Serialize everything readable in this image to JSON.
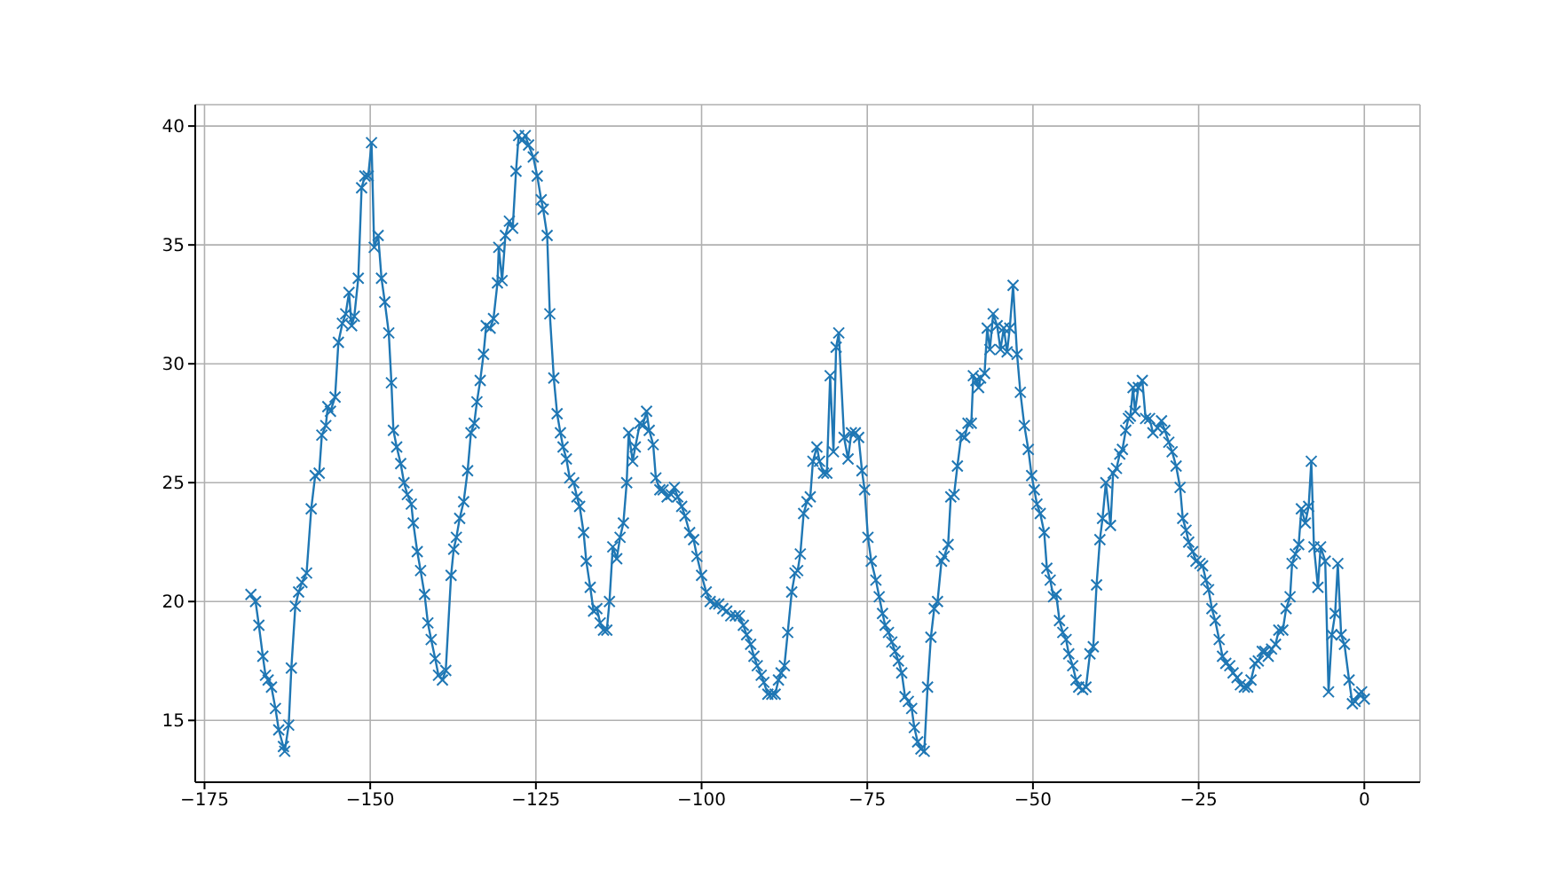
{
  "chart_data": {
    "type": "line",
    "x": [
      -168,
      -167.3,
      -166.8,
      -166.2,
      -165.8,
      -165.4,
      -164.9,
      -164.3,
      -163.8,
      -163.1,
      -162.9,
      -162.3,
      -161.9,
      -161.3,
      -160.8,
      -160.3,
      -159.6,
      -158.9,
      -158.3,
      -157.7,
      -157.3,
      -156.7,
      -156.4,
      -156.0,
      -155.3,
      -154.8,
      -154.2,
      -153.7,
      -153.2,
      -152.8,
      -152.4,
      -151.8,
      -151.3,
      -150.8,
      -150.3,
      -149.8,
      -149.4,
      -148.8,
      -148.3,
      -147.8,
      -147.2,
      -146.8,
      -146.5,
      -146.0,
      -145.4,
      -144.9,
      -144.4,
      -143.8,
      -143.5,
      -142.9,
      -142.4,
      -141.8,
      -141.3,
      -140.8,
      -140.2,
      -139.7,
      -139.1,
      -138.6,
      -137.8,
      -137.4,
      -137.0,
      -136.5,
      -135.9,
      -135.3,
      -134.8,
      -134.3,
      -133.9,
      -133.4,
      -132.9,
      -132.5,
      -131.9,
      -131.4,
      -130.8,
      -130.6,
      -130.1,
      -129.6,
      -129.0,
      -128.5,
      -128.0,
      -127.6,
      -127.1,
      -126.6,
      -126.1,
      -125.4,
      -124.8,
      -124.2,
      -123.9,
      -123.3,
      -122.9,
      -122.3,
      -121.8,
      -121.3,
      -120.9,
      -120.4,
      -119.9,
      -119.3,
      -118.8,
      -118.4,
      -117.8,
      -117.4,
      -116.8,
      -116.3,
      -115.8,
      -115.3,
      -114.8,
      -114.3,
      -113.9,
      -113.4,
      -112.8,
      -112.3,
      -111.8,
      -111.3,
      -111.0,
      -110.4,
      -110.0,
      -109.3,
      -108.9,
      -108.3,
      -107.9,
      -107.3,
      -106.9,
      -106.3,
      -105.8,
      -105.2,
      -104.6,
      -104.1,
      -103.6,
      -103.0,
      -102.5,
      -101.8,
      -101.2,
      -100.7,
      -100.0,
      -99.3,
      -98.7,
      -98.0,
      -97.4,
      -96.8,
      -96.2,
      -95.6,
      -94.9,
      -94.3,
      -93.7,
      -93.2,
      -92.6,
      -92.1,
      -91.6,
      -91.0,
      -90.6,
      -90.0,
      -89.4,
      -88.9,
      -88.4,
      -88.0,
      -87.5,
      -87.0,
      -86.4,
      -85.9,
      -85.5,
      -85.1,
      -84.6,
      -84.1,
      -83.6,
      -83.2,
      -82.6,
      -82.2,
      -81.6,
      -81.1,
      -80.6,
      -80.1,
      -79.7,
      -79.3,
      -78.5,
      -77.9,
      -77.4,
      -76.8,
      -76.3,
      -75.8,
      -75.4,
      -74.9,
      -74.4,
      -73.7,
      -73.2,
      -72.7,
      -72.3,
      -71.8,
      -71.3,
      -70.8,
      -70.3,
      -69.8,
      -69.3,
      -68.8,
      -68.3,
      -67.9,
      -67.4,
      -66.9,
      -66.4,
      -65.9,
      -65.4,
      -64.9,
      -64.4,
      -63.8,
      -63.4,
      -62.8,
      -62.4,
      -61.9,
      -61.4,
      -60.8,
      -60.3,
      -59.8,
      -59.3,
      -59.0,
      -58.6,
      -58.2,
      -57.9,
      -57.3,
      -56.9,
      -56.5,
      -56.0,
      -55.4,
      -54.9,
      -54.4,
      -53.9,
      -53.5,
      -53.0,
      -52.4,
      -51.9,
      -51.3,
      -50.7,
      -50.2,
      -49.8,
      -49.4,
      -48.9,
      -48.3,
      -47.9,
      -47.4,
      -46.9,
      -46.5,
      -46.0,
      -45.5,
      -45.0,
      -44.6,
      -44.0,
      -43.5,
      -43.1,
      -42.5,
      -42.0,
      -41.4,
      -40.9,
      -40.4,
      -39.9,
      -39.5,
      -39.0,
      -38.3,
      -37.9,
      -37.4,
      -36.9,
      -36.5,
      -36.0,
      -35.6,
      -35.3,
      -34.9,
      -34.6,
      -34.1,
      -33.5,
      -33.0,
      -32.4,
      -31.9,
      -31.2,
      -30.6,
      -30.1,
      -29.5,
      -29.0,
      -28.4,
      -27.8,
      -27.4,
      -26.9,
      -26.5,
      -25.9,
      -25.4,
      -24.8,
      -24.4,
      -23.9,
      -23.5,
      -23.0,
      -22.5,
      -21.9,
      -21.4,
      -20.9,
      -20.3,
      -19.8,
      -19.2,
      -18.7,
      -18.1,
      -17.6,
      -17.1,
      -16.5,
      -16.0,
      -15.4,
      -15.0,
      -14.5,
      -14.0,
      -13.4,
      -12.9,
      -12.3,
      -11.8,
      -11.2,
      -10.9,
      -10.4,
      -9.9,
      -9.5,
      -8.9,
      -8.4,
      -8.0,
      -7.6,
      -7.0,
      -6.6,
      -5.9,
      -5.4,
      -4.9,
      -4.4,
      -4.0,
      -3.5,
      -3.0,
      -2.3,
      -1.8,
      -1.4,
      -0.8,
      -0.4,
      0
    ],
    "values": [
      20.3,
      20.0,
      19.0,
      17.7,
      16.9,
      16.7,
      16.4,
      15.5,
      14.6,
      13.9,
      13.7,
      14.8,
      17.2,
      19.8,
      20.4,
      20.8,
      21.2,
      23.9,
      25.3,
      25.4,
      27.0,
      27.4,
      28.2,
      28.0,
      28.6,
      30.9,
      31.7,
      32.1,
      33.0,
      31.6,
      32.0,
      33.6,
      37.4,
      37.9,
      37.9,
      39.3,
      34.9,
      35.4,
      33.6,
      32.6,
      31.3,
      29.2,
      27.2,
      26.5,
      25.8,
      25.0,
      24.5,
      24.1,
      23.3,
      22.1,
      21.3,
      20.3,
      19.1,
      18.4,
      17.6,
      16.9,
      16.7,
      17.1,
      21.1,
      22.2,
      22.7,
      23.5,
      24.2,
      25.5,
      27.1,
      27.5,
      28.4,
      29.3,
      30.4,
      31.6,
      31.5,
      31.9,
      33.4,
      34.9,
      33.5,
      35.4,
      36.0,
      35.7,
      38.1,
      39.6,
      39.4,
      39.6,
      39.2,
      38.7,
      37.9,
      36.9,
      36.5,
      35.4,
      32.1,
      29.4,
      27.9,
      27.1,
      26.5,
      26.0,
      25.2,
      25.0,
      24.4,
      24.0,
      22.9,
      21.7,
      20.6,
      19.6,
      19.7,
      19.1,
      18.8,
      18.8,
      20.0,
      22.3,
      21.8,
      22.7,
      23.3,
      25.0,
      27.1,
      25.9,
      26.5,
      27.5,
      27.4,
      28.0,
      27.2,
      26.6,
      25.2,
      24.7,
      24.7,
      24.4,
      24.5,
      24.8,
      24.4,
      24.0,
      23.6,
      22.9,
      22.6,
      21.9,
      21.1,
      20.4,
      20.0,
      19.9,
      19.9,
      19.7,
      19.6,
      19.4,
      19.4,
      19.4,
      19.0,
      18.6,
      18.2,
      17.7,
      17.3,
      16.9,
      16.6,
      16.1,
      16.1,
      16.1,
      16.7,
      17.0,
      17.3,
      18.7,
      20.4,
      21.2,
      21.3,
      22.0,
      23.7,
      24.2,
      24.4,
      25.9,
      26.5,
      25.9,
      25.4,
      25.4,
      29.5,
      26.3,
      30.7,
      31.3,
      26.9,
      26.0,
      27.1,
      27.1,
      26.9,
      25.5,
      24.7,
      22.7,
      21.7,
      20.9,
      20.2,
      19.5,
      19.0,
      18.7,
      18.3,
      17.9,
      17.5,
      17.0,
      16.0,
      15.8,
      15.5,
      14.7,
      14.1,
      13.8,
      13.7,
      16.4,
      18.5,
      19.7,
      20.0,
      21.7,
      21.9,
      22.4,
      24.4,
      24.5,
      25.7,
      27.0,
      26.9,
      27.5,
      27.5,
      29.5,
      29.3,
      29.0,
      29.4,
      29.6,
      31.5,
      30.6,
      32.1,
      31.6,
      30.6,
      31.5,
      30.5,
      31.5,
      33.3,
      30.4,
      28.8,
      27.4,
      26.4,
      25.3,
      24.7,
      24.1,
      23.7,
      22.9,
      21.4,
      20.9,
      20.2,
      20.3,
      19.2,
      18.7,
      18.4,
      17.8,
      17.3,
      16.7,
      16.4,
      16.3,
      16.4,
      17.8,
      18.1,
      20.7,
      22.6,
      23.5,
      25.0,
      23.2,
      25.4,
      25.6,
      26.2,
      26.4,
      27.2,
      27.7,
      27.8,
      29.0,
      28.0,
      29.0,
      29.3,
      27.7,
      27.7,
      27.1,
      27.3,
      27.6,
      27.2,
      26.7,
      26.3,
      25.7,
      24.8,
      23.5,
      23.0,
      22.5,
      22.1,
      21.7,
      21.6,
      21.5,
      20.9,
      20.5,
      19.7,
      19.2,
      18.4,
      17.7,
      17.4,
      17.3,
      17.0,
      16.8,
      16.5,
      16.4,
      16.4,
      16.7,
      17.4,
      17.5,
      17.9,
      17.9,
      17.7,
      18.0,
      18.2,
      18.8,
      18.8,
      19.7,
      20.2,
      21.6,
      22.0,
      22.4,
      23.9,
      23.3,
      24.0,
      25.9,
      22.3,
      20.6,
      22.3,
      21.7,
      16.2,
      18.6,
      19.5,
      21.6,
      18.6,
      18.2,
      16.7,
      15.7,
      15.8,
      16.1,
      16.2,
      15.9
    ],
    "color": "#1f77b4",
    "marker": "cross",
    "line_style": "solid",
    "grid": true,
    "xlim": [
      -176.4,
      8.4
    ],
    "ylim": [
      12.4,
      40.9
    ],
    "xticks": [
      {
        "value": -175,
        "label": "−175"
      },
      {
        "value": -150,
        "label": "−150"
      },
      {
        "value": -125,
        "label": "−125"
      },
      {
        "value": -100,
        "label": "−100"
      },
      {
        "value": -75,
        "label": "−75"
      },
      {
        "value": -50,
        "label": "−50"
      },
      {
        "value": -25,
        "label": "−25"
      },
      0
    ],
    "yticks": [
      15,
      20,
      25,
      30,
      35,
      40
    ]
  }
}
